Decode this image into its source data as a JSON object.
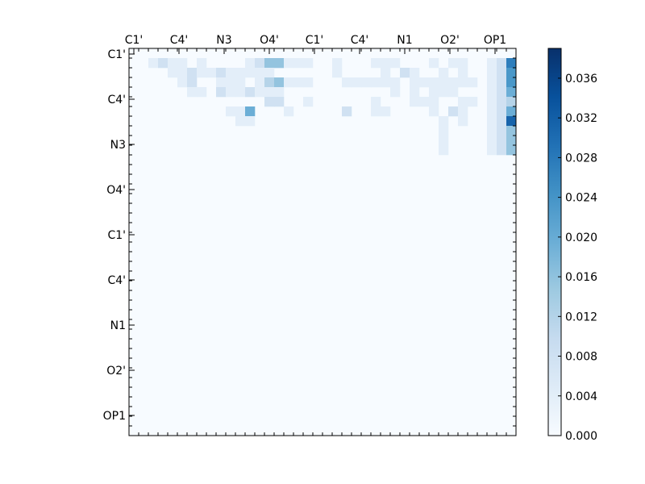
{
  "chart_data": {
    "type": "heatmap",
    "title": "",
    "colormap": "Blues",
    "x_tick_labels": [
      "C1'",
      "C4'",
      "N3",
      "O4'",
      "C1'",
      "C4'",
      "N1",
      "O2'",
      "OP1"
    ],
    "y_tick_labels": [
      "C1'",
      "C4'",
      "N3",
      "O4'",
      "C1'",
      "C4'",
      "N1",
      "O2'",
      "OP1"
    ],
    "x_ticks_position": "top",
    "n_rows": 40,
    "n_cols": 40,
    "upper_triangle_only": true,
    "colorbar": {
      "vmin": 0.0,
      "vmax": 0.039,
      "position": "right",
      "tick_values": [
        0.0,
        0.004,
        0.008,
        0.012,
        0.016,
        0.02,
        0.024,
        0.028,
        0.032,
        0.036
      ],
      "tick_labels": [
        "0.000",
        "0.004",
        "0.008",
        "0.012",
        "0.016",
        "0.020",
        "0.024",
        "0.028",
        "0.032",
        "0.036"
      ]
    },
    "matrix": [
      "0000000000000000000000000000000000000000",
      "0012110100001244111001000111000101100127",
      "0000112112111110000001000010210010100126",
      "0000012001110134111000111111011111110126",
      "0000001102112111000000000001010111000125",
      "0000000000000022001000000100011100110123",
      "0000000000115000100000200110000102100125",
      "0000000000011000000000000000000010100128",
      "0000000000000000000000000000000010000124",
      "0000000000000000000000000000000010000124",
      "0000000000000000000000000000000010000124",
      "0000000000000000000000000000000000000000",
      "0000000000000000000000000000000000000000",
      "0000000000000000000000000000000000000000",
      "0000000000000000000000000000000000000000",
      "0000000000000000000000000000000000000000",
      "0000000000000000000000000000000000000000",
      "0000000000000000000000000000000000000000",
      "0000000000000000000000000000000000000000",
      "0000000000000000000000000000000000000000",
      "0000000000000000000000000000000000000000",
      "0000000000000000000000000000000000000000",
      "0000000000000000000000000000000000000000",
      "0000000000000000000000000000000000000000",
      "0000000000000000000000000000000000000000",
      "0000000000000000000000000000000000000000",
      "0000000000000000000000000000000000000000",
      "0000000000000000000000000000000000000000",
      "0000000000000000000000000000000000000000",
      "0000000000000000000000000000000000000000",
      "0000000000000000000000000000000000000000",
      "0000000000000000000000000000000000000000",
      "0000000000000000000000000000000000000000",
      "0000000000000000000000000000000000000000",
      "0000000000000000000000000000000000000000",
      "0000000000000000000000000000000000000000",
      "0000000000000000000000000000000000000000",
      "0000000000000000000000000000000000000000",
      "0000000000000000000000000000000000000000",
      "0000000000000000000000000000000000000000"
    ],
    "matrix_scale": 0.0039
  }
}
